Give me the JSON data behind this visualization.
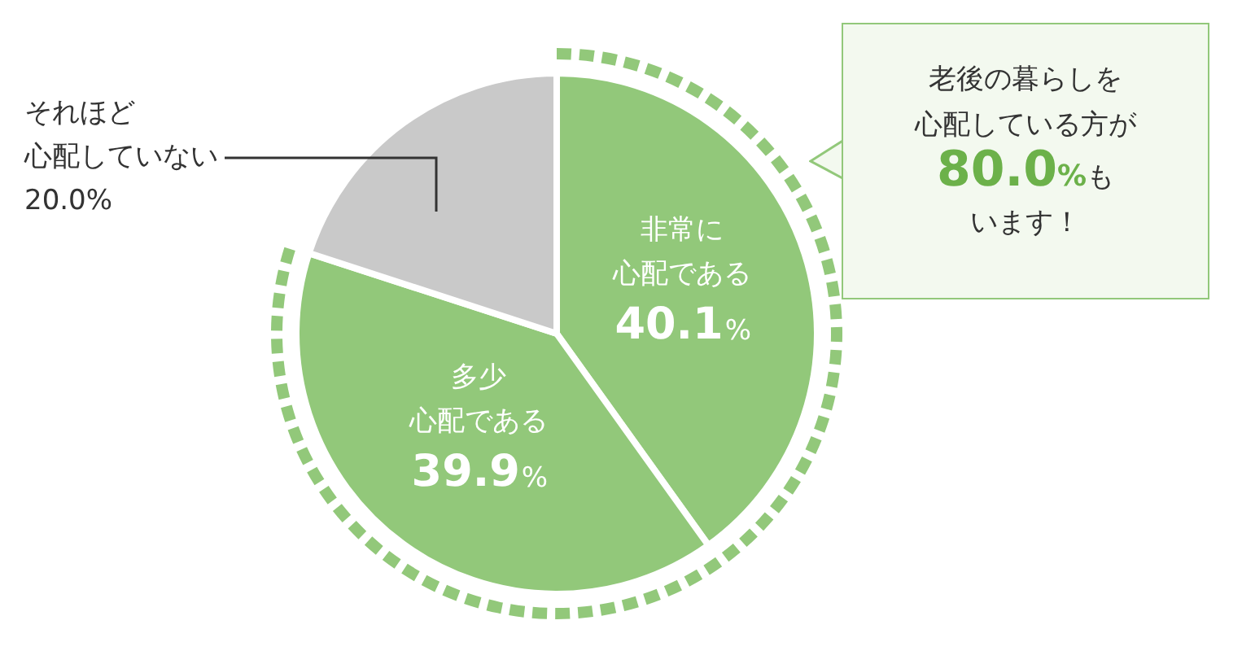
{
  "chart_data": {
    "type": "pie",
    "categories": [
      "非常に心配である",
      "多少心配である",
      "それほど心配していない"
    ],
    "values": [
      40.1,
      39.9,
      20.0
    ],
    "value_labels": [
      "40.1%",
      "39.9%",
      "20.0%"
    ],
    "colors": [
      "#92c87a",
      "#92c87a",
      "#c9c9c9"
    ],
    "legend": false,
    "annotations": [
      "老後の暮らしを心配している方が80.0%もいます！"
    ]
  }
}
